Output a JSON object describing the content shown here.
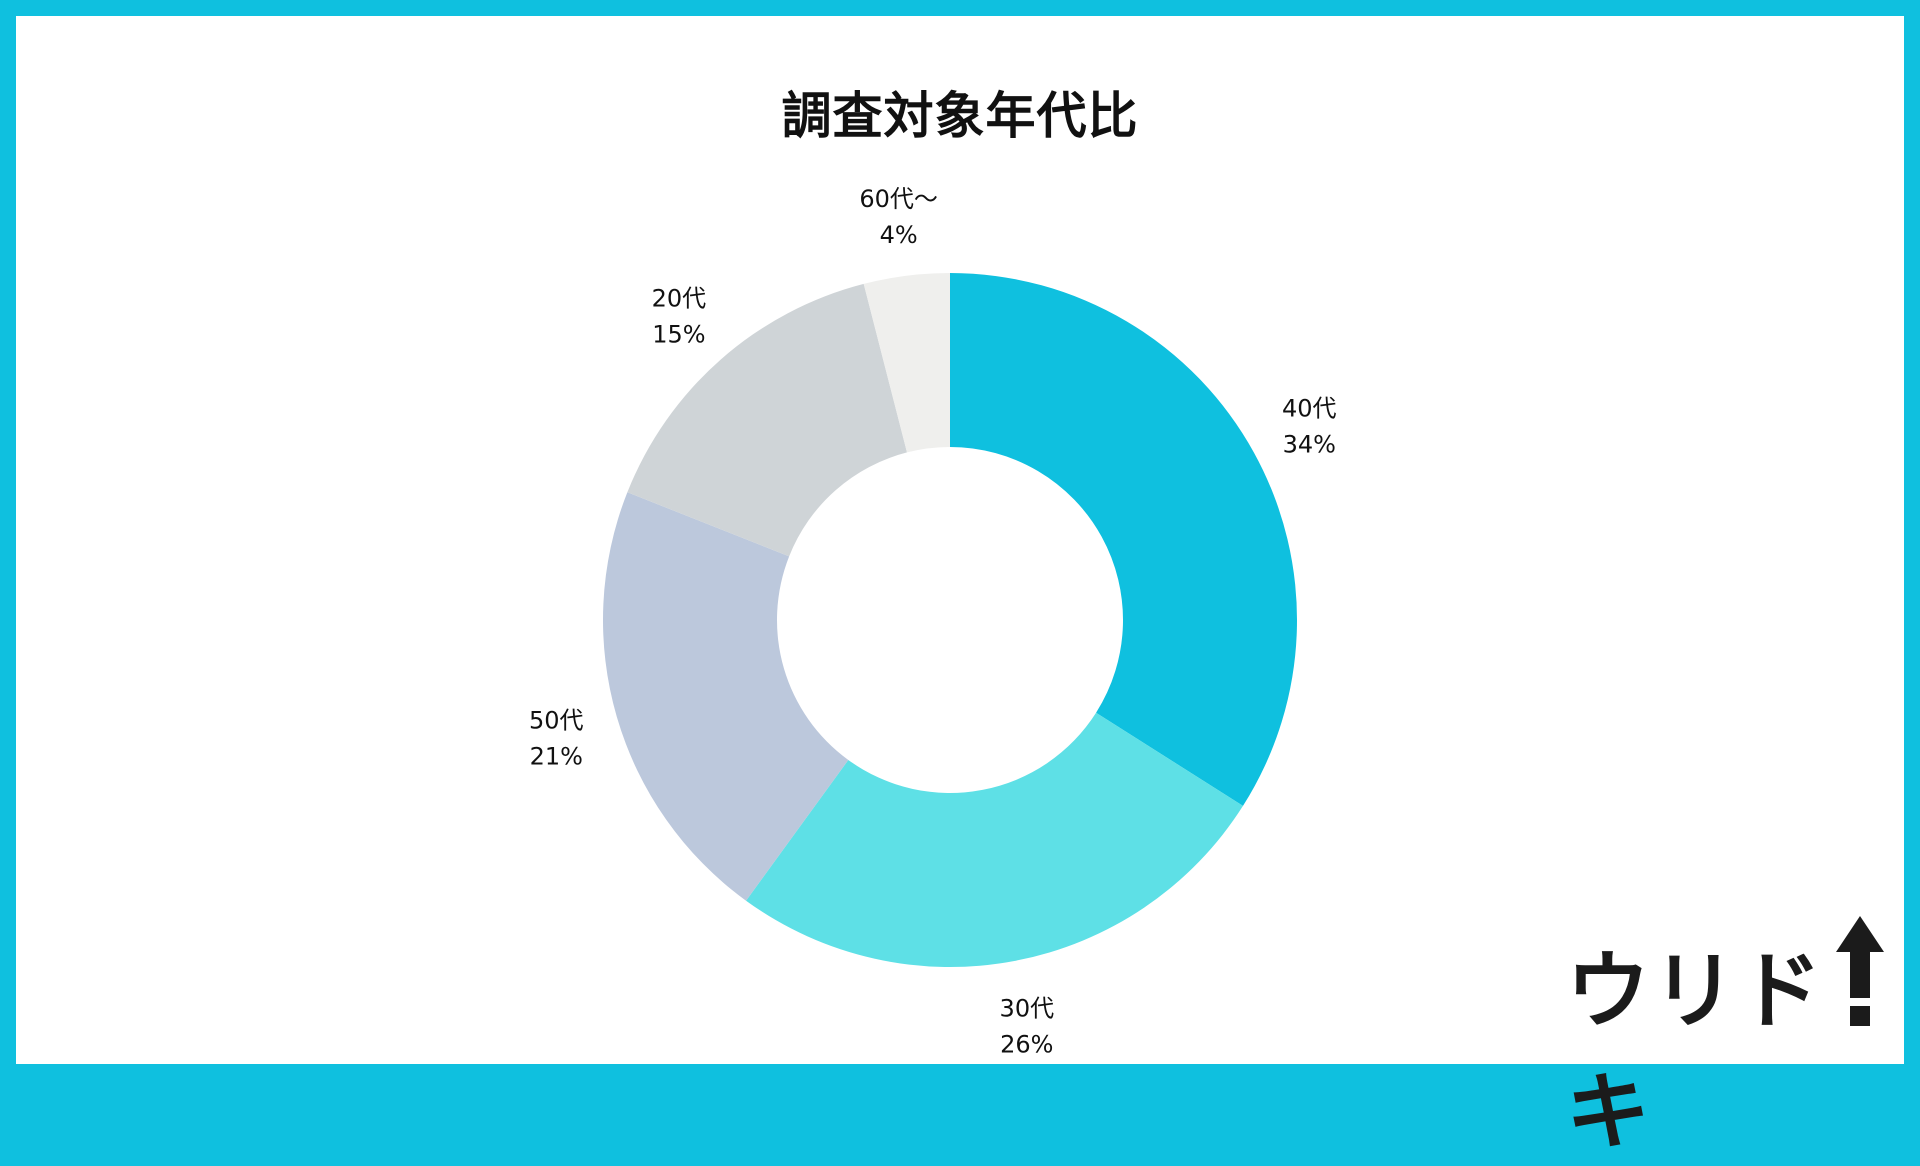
{
  "chart_data": {
    "type": "pie",
    "donut": true,
    "title": "調査対象年代比",
    "slices": [
      {
        "label": "40代",
        "pct_label": "34%",
        "value": 34,
        "color": "#0fc0df"
      },
      {
        "label": "30代",
        "pct_label": "26%",
        "value": 26,
        "color": "#5ee0e6"
      },
      {
        "label": "50代",
        "pct_label": "21%",
        "value": 21,
        "color": "#bcc8dc"
      },
      {
        "label": "20代",
        "pct_label": "15%",
        "value": 15,
        "color": "#cfd4d7"
      },
      {
        "label": "60代～",
        "pct_label": "4%",
        "value": 4,
        "color": "#efefed"
      }
    ],
    "legend": "none"
  },
  "brand": {
    "logo_text": "ウリドキ",
    "frame_color": "#0fc0df"
  }
}
